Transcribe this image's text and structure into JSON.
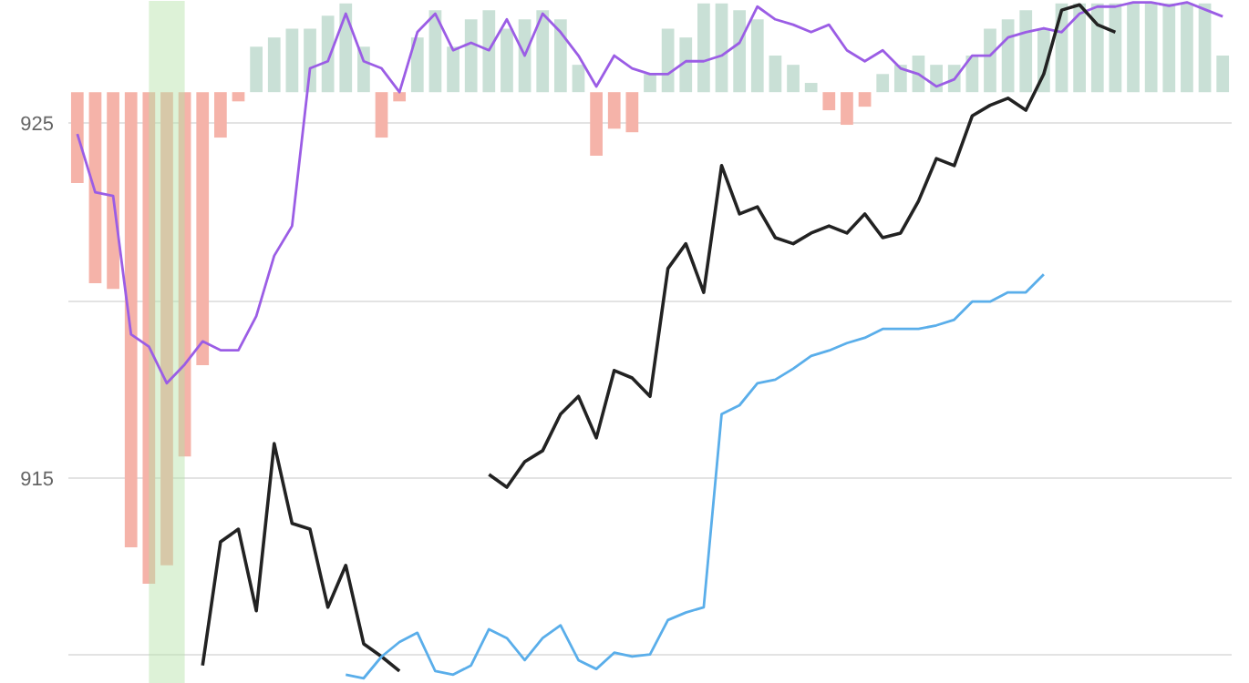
{
  "chart_data": {
    "type": "line",
    "categories": [
      null,
      null,
      null,
      null,
      null,
      null,
      null,
      null,
      null,
      null,
      null,
      null,
      null,
      null,
      null,
      null,
      null,
      null,
      null,
      null,
      null,
      null,
      null,
      null,
      null,
      null,
      null,
      null,
      null,
      null,
      null,
      null,
      null,
      null,
      null,
      null,
      null,
      null,
      null,
      null,
      null,
      null,
      null,
      null,
      null,
      null,
      null,
      null,
      null,
      null,
      null,
      null,
      null,
      null,
      null,
      null,
      null,
      null,
      null,
      null,
      null,
      null,
      null,
      null,
      null
    ],
    "ylim": [
      909.2,
      928.44
    ],
    "yticks": [
      {
        "value": 910,
        "label": null
      },
      915,
      {
        "value": 920,
        "label": null
      },
      925
    ],
    "grid": "y",
    "tick_labels": "y",
    "line_style": "solid",
    "marker": "none",
    "series": [
      {
        "type": "bar",
        "base": [
          925.87,
          925.87,
          925.87,
          925.87,
          925.87,
          925.87,
          925.87,
          925.87,
          925.87,
          925.87,
          925.87,
          925.87,
          925.87,
          925.87,
          925.87,
          925.87,
          925.87,
          925.87,
          925.87,
          925.87,
          925.87,
          925.87,
          925.87,
          925.87,
          925.87,
          925.87,
          925.87,
          925.87,
          925.87,
          925.87,
          925.87,
          925.87,
          925.87,
          925.87,
          925.87,
          925.87,
          925.87,
          925.87,
          925.87,
          925.87,
          925.87,
          925.87,
          925.87,
          925.87,
          925.87,
          925.87,
          925.87,
          925.87,
          925.87,
          925.87,
          925.87,
          925.87,
          925.87,
          925.87,
          925.87,
          925.87,
          925.87,
          925.87,
          925.87,
          925.87,
          925.87,
          925.87,
          925.87,
          925.87,
          925.87
        ],
        "values": [
          -2.56,
          -5.38,
          -5.54,
          -12.82,
          -13.85,
          -13.33,
          -10.26,
          -7.69,
          -1.28,
          -0.26,
          1.28,
          1.54,
          1.79,
          1.79,
          2.15,
          2.5,
          1.28,
          -1.28,
          -0.26,
          1.54,
          2.31,
          1.28,
          2.05,
          2.31,
          1.79,
          2.05,
          2.31,
          2.05,
          0.77,
          -1.79,
          -1.03,
          -1.13,
          0.51,
          1.79,
          1.54,
          2.5,
          2.5,
          2.31,
          2.05,
          1.03,
          0.77,
          0.26,
          -0.51,
          -0.92,
          -0.41,
          0.51,
          0.77,
          1.03,
          0.77,
          0.77,
          1.03,
          1.79,
          2.05,
          2.31,
          1.79,
          2.5,
          2.5,
          2.5,
          2.5,
          2.5,
          2.5,
          2.5,
          2.5,
          2.5,
          1.03
        ],
        "colors": [
          "#f5b3a9",
          "#f5b3a9",
          "#f5b3a9",
          "#f5b3a9",
          "#f5b3a9",
          "#f5b3a9",
          "#f5b3a9",
          "#f5b3a9",
          "#f5b3a9",
          "#f5b3a9",
          "#c9e0d6",
          "#c9e0d6",
          "#c9e0d6",
          "#c9e0d6",
          "#c9e0d6",
          "#c9e0d6",
          "#c9e0d6",
          "#f5b3a9",
          "#f5b3a9",
          "#c9e0d6",
          "#c9e0d6",
          "#c9e0d6",
          "#c9e0d6",
          "#c9e0d6",
          "#c9e0d6",
          "#c9e0d6",
          "#c9e0d6",
          "#c9e0d6",
          "#c9e0d6",
          "#f5b3a9",
          "#f5b3a9",
          "#f5b3a9",
          "#c9e0d6",
          "#c9e0d6",
          "#c9e0d6",
          "#c9e0d6",
          "#c9e0d6",
          "#c9e0d6",
          "#c9e0d6",
          "#c9e0d6",
          "#c9e0d6",
          "#c9e0d6",
          "#f5b3a9",
          "#f5b3a9",
          "#f5b3a9",
          "#c9e0d6",
          "#c9e0d6",
          "#c9e0d6",
          "#c9e0d6",
          "#c9e0d6",
          "#c9e0d6",
          "#c9e0d6",
          "#c9e0d6",
          "#c9e0d6",
          "#c9e0d6",
          "#c9e0d6",
          "#c9e0d6",
          "#c9e0d6",
          "#c9e0d6",
          "#c9e0d6",
          "#c9e0d6",
          "#c9e0d6",
          "#c9e0d6",
          "#c9e0d6",
          "#c9e0d6"
        ]
      },
      {
        "color": "#9b5de5",
        "values": [
          924.69,
          923.05,
          922.95,
          919.05,
          918.7,
          917.67,
          918.2,
          918.85,
          918.6,
          918.6,
          919.56,
          921.26,
          922.1,
          926.54,
          926.74,
          928.08,
          926.74,
          926.54,
          925.87,
          927.56,
          928.08,
          927.05,
          927.26,
          927.05,
          927.92,
          926.9,
          928.08,
          927.56,
          926.9,
          926.03,
          926.9,
          926.54,
          926.38,
          926.38,
          926.74,
          926.74,
          926.9,
          927.26,
          928.28,
          927.92,
          927.77,
          927.56,
          927.77,
          927.05,
          926.74,
          927.05,
          926.54,
          926.38,
          926.03,
          926.23,
          926.9,
          926.9,
          927.41,
          927.56,
          927.67,
          927.56,
          928.08,
          928.28,
          928.28,
          928.4,
          928.4,
          928.3,
          928.4,
          928.2,
          928.0
        ]
      },
      {
        "color": "#222222",
        "values": [
          null,
          null,
          null,
          null,
          null,
          null,
          null,
          909.72,
          913.2,
          913.56,
          911.26,
          915.97,
          913.72,
          913.56,
          911.36,
          912.54,
          910.33,
          909.97,
          909.56,
          null,
          null,
          null,
          null,
          915.1,
          914.74,
          915.46,
          915.77,
          916.8,
          917.3,
          916.13,
          918.03,
          917.82,
          917.3,
          920.9,
          921.6,
          920.23,
          923.8,
          922.44,
          922.64,
          921.77,
          921.6,
          921.9,
          922.1,
          921.9,
          922.44,
          921.77,
          921.9,
          922.8,
          924.0,
          923.8,
          925.2,
          925.5,
          925.7,
          925.36,
          926.38,
          928.18,
          928.33,
          927.77,
          927.56,
          null,
          null,
          null,
          null,
          null,
          null
        ]
      },
      {
        "color": "#5aaeea",
        "values": [
          null,
          null,
          null,
          null,
          null,
          null,
          null,
          null,
          null,
          null,
          null,
          null,
          null,
          null,
          null,
          909.46,
          909.36,
          909.97,
          910.38,
          910.64,
          909.56,
          909.46,
          909.72,
          910.74,
          910.49,
          909.87,
          910.49,
          910.85,
          909.87,
          909.62,
          910.08,
          909.97,
          910.03,
          911.0,
          911.21,
          911.36,
          916.8,
          917.05,
          917.67,
          917.77,
          918.08,
          918.44,
          918.59,
          918.8,
          918.95,
          919.2,
          919.2,
          919.2,
          919.3,
          919.46,
          919.97,
          919.97,
          920.23,
          920.23,
          920.74,
          null,
          null,
          null,
          null,
          null,
          null,
          null,
          null,
          null,
          null
        ]
      }
    ]
  }
}
